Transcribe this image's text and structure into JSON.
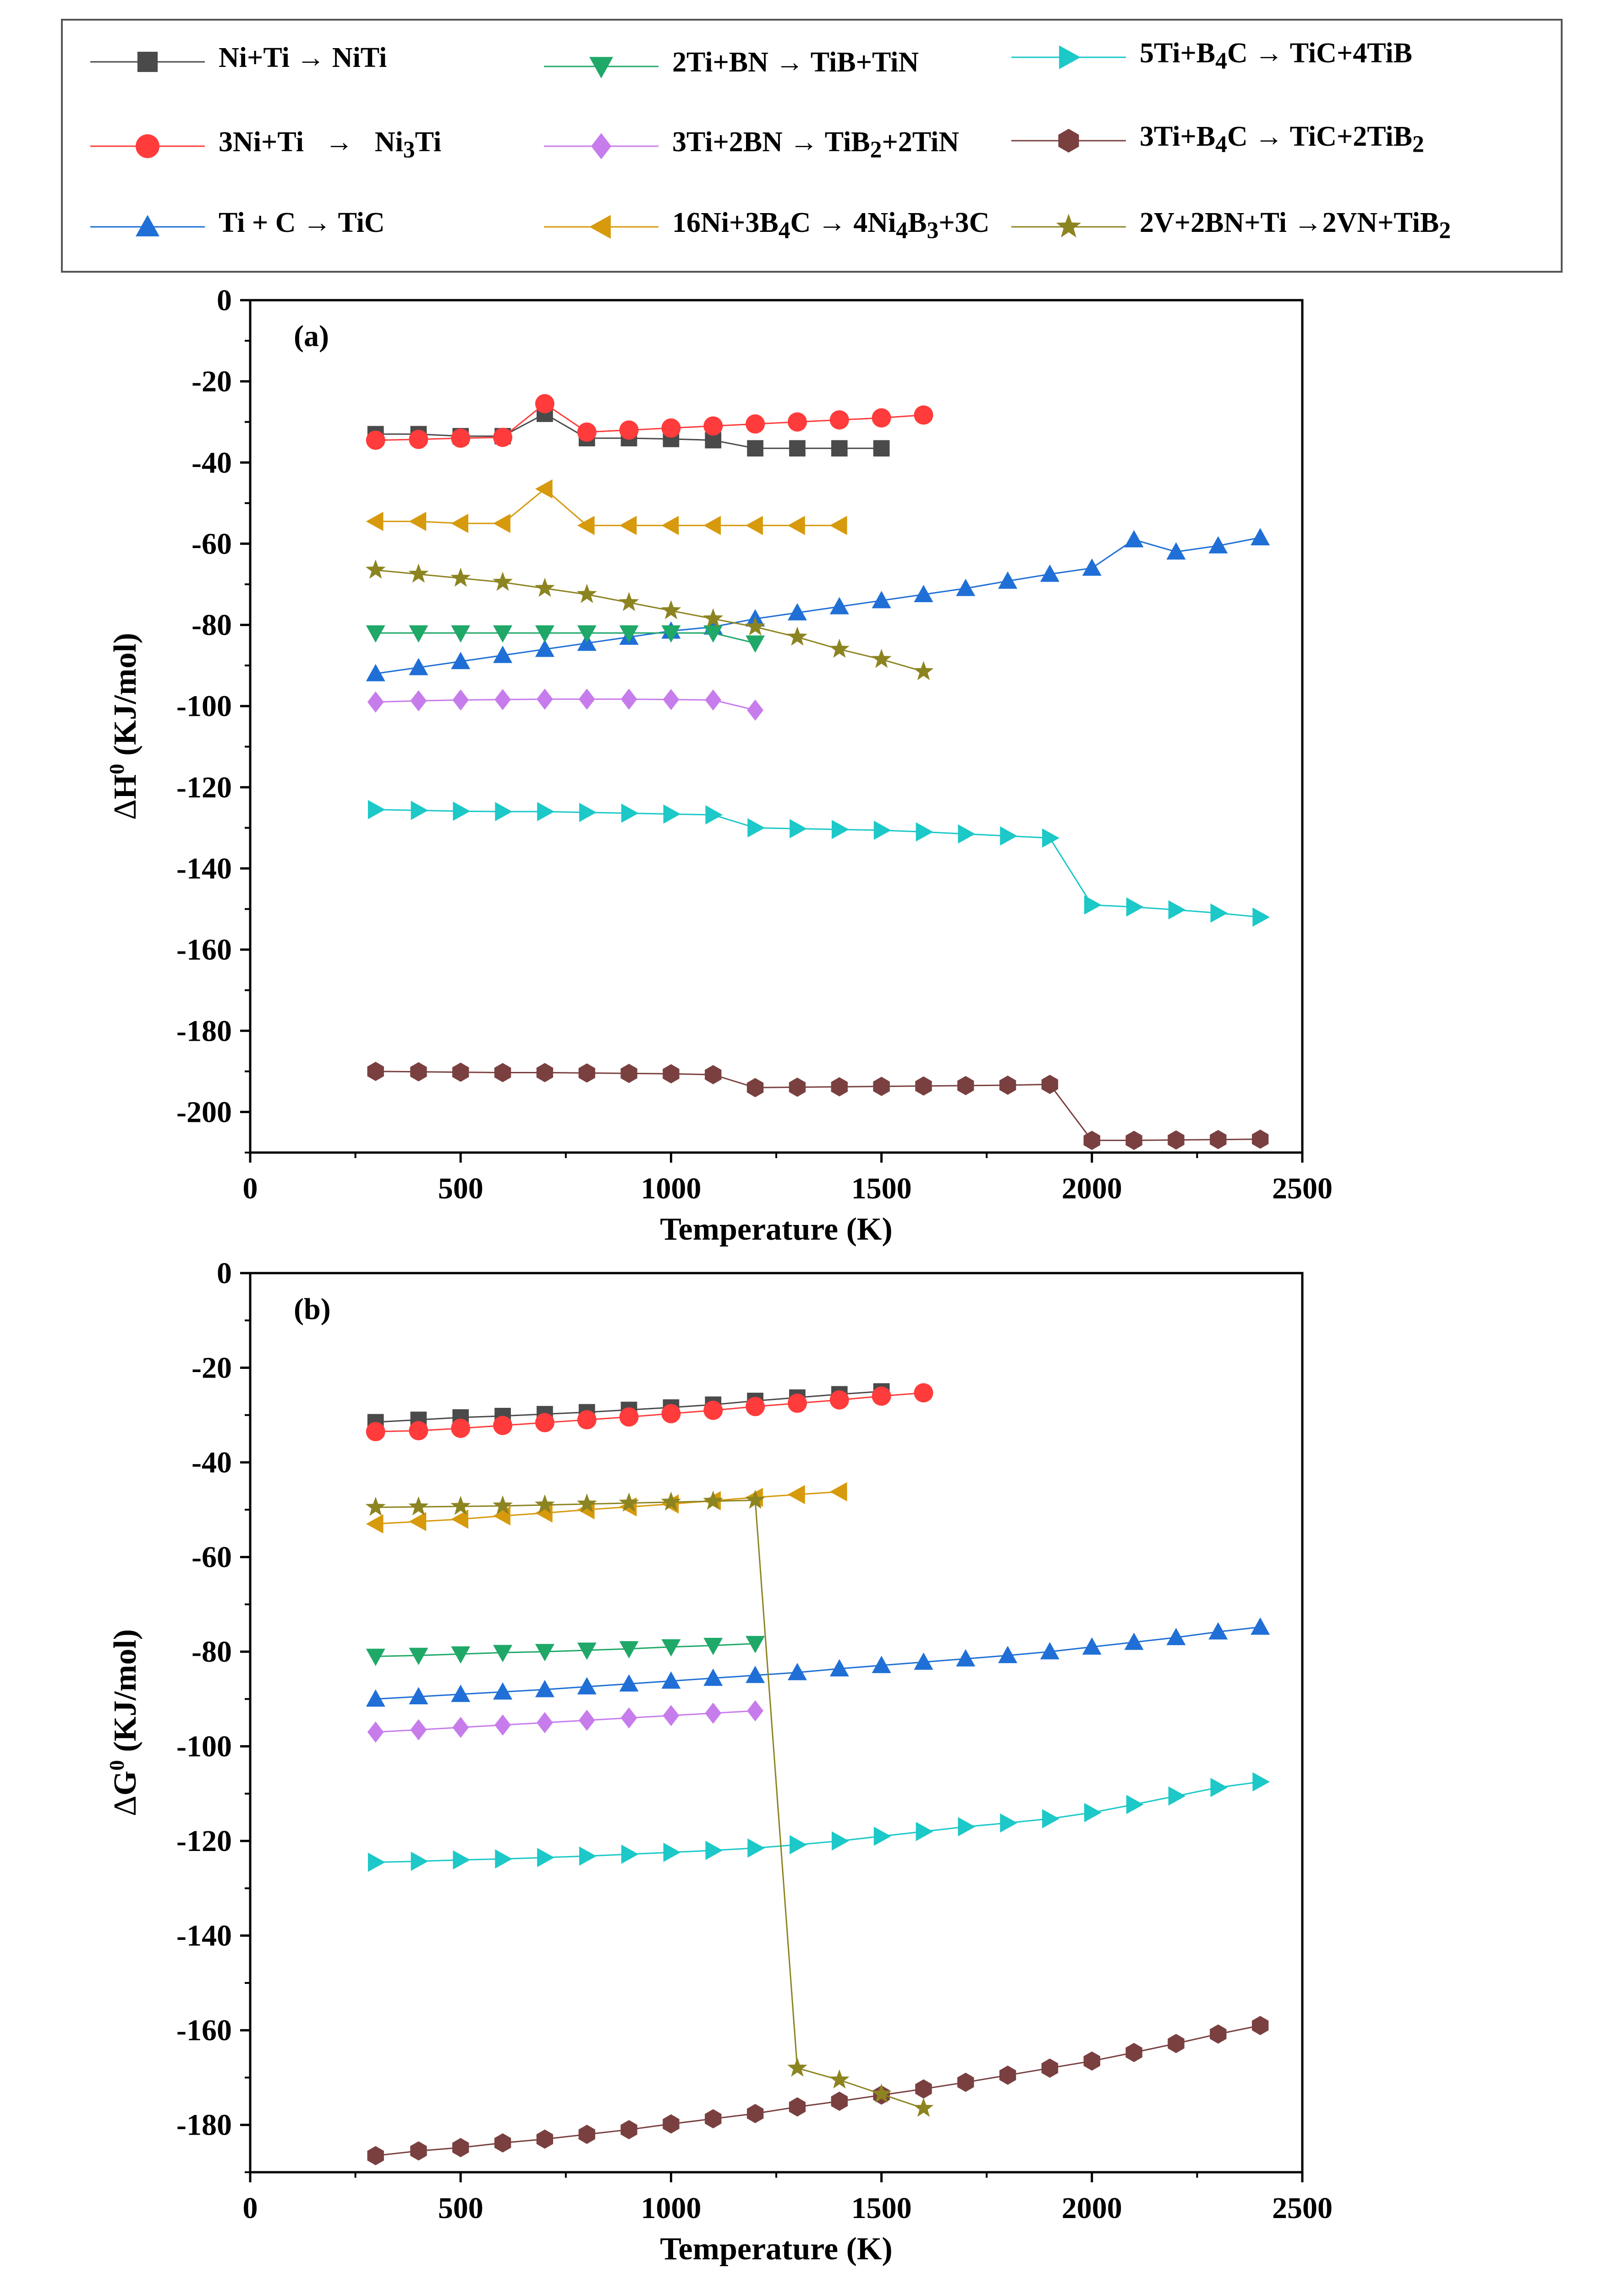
{
  "chart_data": [
    {
      "type": "line",
      "panel_label": "(a)",
      "title": "",
      "xlabel": "Temperature (K)",
      "ylabel": "ΔH⁰ (KJ/mol)",
      "xlim": [
        0,
        2500
      ],
      "ylim": [
        -210,
        0
      ],
      "x_ticks": [
        0,
        500,
        1000,
        1500,
        2000,
        2500
      ],
      "y_ticks": [
        0,
        -20,
        -40,
        -60,
        -80,
        -100,
        -120,
        -140,
        -160,
        -180,
        -200
      ],
      "series": [
        {
          "key": "niti",
          "name": "Ni+Ti → NiTi",
          "x": [
            298,
            400,
            500,
            600,
            700,
            800,
            900,
            1000,
            1100,
            1200,
            1300,
            1400,
            1500
          ],
          "y": [
            -33,
            -33,
            -33.5,
            -33.5,
            -28,
            -34,
            -34,
            -34.2,
            -34.5,
            -36.5,
            -36.5,
            -36.5,
            -36.5
          ]
        },
        {
          "key": "ni3ti",
          "name": "3Ni+Ti → Ni3Ti",
          "x": [
            298,
            400,
            500,
            600,
            700,
            800,
            900,
            1000,
            1100,
            1200,
            1300,
            1400,
            1500,
            1600
          ],
          "y": [
            -34.5,
            -34.3,
            -34,
            -33.8,
            -25.5,
            -32.5,
            -32,
            -31.5,
            -31,
            -30.5,
            -30,
            -29.5,
            -29,
            -28.3
          ]
        },
        {
          "key": "tic",
          "name": "Ti + C → TiC",
          "x": [
            298,
            400,
            500,
            600,
            700,
            800,
            900,
            1000,
            1100,
            1200,
            1300,
            1400,
            1500,
            1600,
            1700,
            1800,
            1900,
            2000,
            2100,
            2200,
            2300,
            2400
          ],
          "y": [
            -92,
            -90.5,
            -89,
            -87.5,
            -86,
            -84.5,
            -83,
            -81.5,
            -80.5,
            -78.5,
            -77,
            -75.5,
            -74,
            -72.5,
            -71,
            -69.2,
            -67.5,
            -66,
            -59,
            -62,
            -60.5,
            -58.5
          ]
        },
        {
          "key": "tib_tin",
          "name": "2Ti+BN → TiB+TiN",
          "x": [
            298,
            400,
            500,
            600,
            700,
            800,
            900,
            1000,
            1100,
            1200
          ],
          "y": [
            -82,
            -82,
            -82,
            -82,
            -82,
            -82,
            -82,
            -82,
            -82,
            -84.5
          ]
        },
        {
          "key": "tib2_tin",
          "name": "3Ti+2BN → TiB2+2TiN",
          "x": [
            298,
            400,
            500,
            600,
            700,
            800,
            900,
            1000,
            1100,
            1200
          ],
          "y": [
            -99,
            -98.7,
            -98.5,
            -98.4,
            -98.3,
            -98.3,
            -98.3,
            -98.4,
            -98.5,
            -101
          ]
        },
        {
          "key": "ni4b3",
          "name": "16Ni+3B4C → 4Ni4B3+3C",
          "x": [
            298,
            400,
            500,
            600,
            700,
            800,
            900,
            1000,
            1100,
            1200,
            1300,
            1400
          ],
          "y": [
            -54.5,
            -54.5,
            -55,
            -55,
            -46.5,
            -55.5,
            -55.5,
            -55.5,
            -55.5,
            -55.5,
            -55.5,
            -55.5
          ]
        },
        {
          "key": "tic_4tib",
          "name": "5Ti+B4C → TiC+4TiB",
          "x": [
            298,
            400,
            500,
            600,
            700,
            800,
            900,
            1000,
            1100,
            1200,
            1300,
            1400,
            1500,
            1600,
            1700,
            1800,
            1900,
            2000,
            2100,
            2200,
            2300,
            2400
          ],
          "y": [
            -125.5,
            -125.7,
            -125.9,
            -126,
            -126,
            -126.2,
            -126.4,
            -126.6,
            -126.8,
            -130,
            -130.2,
            -130.4,
            -130.6,
            -131,
            -131.5,
            -132,
            -132.5,
            -149,
            -149.5,
            -150.2,
            -151,
            -152
          ]
        },
        {
          "key": "tic_2tib2",
          "name": "3Ti+B4C → TiC+2TiB2",
          "x": [
            298,
            400,
            500,
            600,
            700,
            800,
            900,
            1000,
            1100,
            1200,
            1300,
            1400,
            1500,
            1600,
            1700,
            1800,
            1900,
            2000,
            2100,
            2200,
            2300,
            2400
          ],
          "y": [
            -190,
            -190.1,
            -190.2,
            -190.3,
            -190.3,
            -190.4,
            -190.5,
            -190.6,
            -190.8,
            -194,
            -193.9,
            -193.8,
            -193.7,
            -193.6,
            -193.5,
            -193.4,
            -193.2,
            -207,
            -207,
            -206.9,
            -206.8,
            -206.7
          ]
        },
        {
          "key": "vn_tib2",
          "name": "2V+2BN+Ti →2VN+TiB2",
          "x": [
            298,
            400,
            500,
            600,
            700,
            800,
            900,
            1000,
            1100,
            1200,
            1300,
            1400,
            1500,
            1600
          ],
          "y": [
            -66.5,
            -67.5,
            -68.5,
            -69.5,
            -71,
            -72.5,
            -74.5,
            -76.5,
            -78.5,
            -80.5,
            -83,
            -86,
            -88.5,
            -91.5
          ]
        }
      ]
    },
    {
      "type": "line",
      "panel_label": "(b)",
      "title": "",
      "xlabel": "Temperature (K)",
      "ylabel": "ΔG⁰ (KJ/mol)",
      "xlim": [
        0,
        2500
      ],
      "ylim": [
        -190,
        0
      ],
      "x_ticks": [
        0,
        500,
        1000,
        1500,
        2000,
        2500
      ],
      "y_ticks": [
        0,
        -20,
        -40,
        -60,
        -80,
        -100,
        -120,
        -140,
        -160,
        -180
      ],
      "series": [
        {
          "key": "niti",
          "name": "Ni+Ti → NiTi",
          "x": [
            298,
            400,
            500,
            600,
            700,
            800,
            900,
            1000,
            1100,
            1200,
            1300,
            1400,
            1500
          ],
          "y": [
            -31.5,
            -31,
            -30.5,
            -30.2,
            -29.8,
            -29.4,
            -28.9,
            -28.4,
            -27.8,
            -27,
            -26.3,
            -25.6,
            -25
          ]
        },
        {
          "key": "ni3ti",
          "name": "3Ni+Ti → Ni3Ti",
          "x": [
            298,
            400,
            500,
            600,
            700,
            800,
            900,
            1000,
            1100,
            1200,
            1300,
            1400,
            1500,
            1600
          ],
          "y": [
            -33.5,
            -33.3,
            -32.8,
            -32.2,
            -31.6,
            -31,
            -30.4,
            -29.7,
            -29,
            -28.2,
            -27.5,
            -26.8,
            -26,
            -25.3
          ]
        },
        {
          "key": "tic",
          "name": "Ti + C → TiC",
          "x": [
            298,
            400,
            500,
            600,
            700,
            800,
            900,
            1000,
            1100,
            1200,
            1300,
            1400,
            1500,
            1600,
            1700,
            1800,
            1900,
            2000,
            2100,
            2200,
            2300,
            2400
          ],
          "y": [
            -90,
            -89.5,
            -89,
            -88.5,
            -88,
            -87.4,
            -86.8,
            -86.2,
            -85.6,
            -85,
            -84.4,
            -83.6,
            -82.9,
            -82.2,
            -81.5,
            -80.8,
            -80,
            -79,
            -78,
            -77,
            -75.8,
            -74.8
          ]
        },
        {
          "key": "tib_tin",
          "name": "2Ti+BN → TiB+TiN",
          "x": [
            298,
            400,
            500,
            600,
            700,
            800,
            900,
            1000,
            1100,
            1200
          ],
          "y": [
            -81,
            -80.8,
            -80.5,
            -80.2,
            -80,
            -79.7,
            -79.4,
            -79,
            -78.7,
            -78.3
          ]
        },
        {
          "key": "tib2_tin",
          "name": "3Ti+2BN → TiB2+2TiN",
          "x": [
            298,
            400,
            500,
            600,
            700,
            800,
            900,
            1000,
            1100,
            1200
          ],
          "y": [
            -97,
            -96.5,
            -96,
            -95.5,
            -95,
            -94.5,
            -94,
            -93.5,
            -93,
            -92.5
          ]
        },
        {
          "key": "ni4b3",
          "name": "16Ni+3B4C → 4Ni4B3+3C",
          "x": [
            298,
            400,
            500,
            600,
            700,
            800,
            900,
            1000,
            1100,
            1200,
            1300,
            1400
          ],
          "y": [
            -53,
            -52.5,
            -52,
            -51.3,
            -50.7,
            -50,
            -49.4,
            -48.8,
            -48.1,
            -47.4,
            -46.8,
            -46.2
          ]
        },
        {
          "key": "tic_4tib",
          "name": "5Ti+B4C → TiC+4TiB",
          "x": [
            298,
            400,
            500,
            600,
            700,
            800,
            900,
            1000,
            1100,
            1200,
            1300,
            1400,
            1500,
            1600,
            1700,
            1800,
            1900,
            2000,
            2100,
            2200,
            2300,
            2400
          ],
          "y": [
            -124.5,
            -124.3,
            -124,
            -123.8,
            -123.5,
            -123.2,
            -122.8,
            -122.4,
            -122,
            -121.5,
            -120.8,
            -120,
            -119,
            -118,
            -117,
            -116.2,
            -115.3,
            -114,
            -112.3,
            -110.5,
            -108.7,
            -107.5
          ]
        },
        {
          "key": "tic_2tib2",
          "name": "3Ti+B4C → TiC+2TiB2",
          "x": [
            298,
            400,
            500,
            600,
            700,
            800,
            900,
            1000,
            1100,
            1200,
            1300,
            1400,
            1500,
            1600,
            1700,
            1800,
            1900,
            2000,
            2100,
            2200,
            2300,
            2400
          ],
          "y": [
            -186.5,
            -185.5,
            -184.8,
            -183.8,
            -183,
            -182,
            -181,
            -179.8,
            -178.7,
            -177.6,
            -176.2,
            -175,
            -173.7,
            -172.4,
            -171,
            -169.5,
            -168,
            -166.5,
            -164.7,
            -162.8,
            -160.8,
            -159
          ]
        },
        {
          "key": "vn_tib2",
          "name": "2V+2BN+Ti →2VN+TiB2",
          "x": [
            298,
            400,
            500,
            600,
            700,
            800,
            900,
            1000,
            1100,
            1200,
            1300,
            1400,
            1500,
            1600
          ],
          "y": [
            -49.5,
            -49.4,
            -49.3,
            -49.2,
            -49,
            -48.8,
            -48.6,
            -48.4,
            -48.2,
            -48,
            -168,
            -170.5,
            -173.5,
            -176.5
          ]
        }
      ]
    }
  ],
  "legend": {
    "niti": "Ni+Ti → NiTi",
    "ni3ti_a": "3Ni+Ti",
    "ni3ti_arrow": "→",
    "ni3ti_b1": "Ni",
    "ni3ti_sub": "3",
    "ni3ti_b2": "Ti",
    "tic": "Ti + C → TiC",
    "tib_tin": "2Ti+BN → TiB+TiN",
    "tib2_tin_a": "3Ti+2BN → TiB",
    "tib2_tin_sub": "2",
    "tib2_tin_b": "+2TiN",
    "ni4b3_a": "16Ni+3B",
    "ni4b3_s1": "4",
    "ni4b3_b": "C → 4Ni",
    "ni4b3_s2": "4",
    "ni4b3_c": "B",
    "ni4b3_s3": "3",
    "ni4b3_d": "+3C",
    "tic_4tib_a": "5Ti+B",
    "tic_4tib_sub": "4",
    "tic_4tib_b": "C → TiC+4TiB",
    "tic_2tib2_a": "3Ti+B",
    "tic_2tib2_s1": "4",
    "tic_2tib2_b": "C → TiC+2TiB",
    "tic_2tib2_s2": "2",
    "vn_tib2_a": "2V+2BN+Ti →2VN+TiB",
    "vn_tib2_sub": "2"
  },
  "colors": {
    "niti": "#4a4a4a",
    "ni3ti": "#ff3b3b",
    "tic": "#1f6fd6",
    "tib_tin": "#1fa868",
    "tib2_tin": "#c77cec",
    "ni4b3": "#d69a0c",
    "tic_4tib": "#1cc8c8",
    "tic_2tib2": "#7a4040",
    "vn_tib2": "#8c8420"
  },
  "markers": {
    "niti": "square",
    "ni3ti": "circle",
    "tic": "triangle-up",
    "tib_tin": "triangle-down",
    "tib2_tin": "diamond",
    "ni4b3": "triangle-left",
    "tic_4tib": "triangle-right",
    "tic_2tib2": "hexagon",
    "vn_tib2": "star"
  },
  "axis_labels": {
    "ylabel_a_delta": "Δ",
    "ylabel_a_sym": "H",
    "ylabel_a_sup": "0",
    "ylabel_a_unit": " (KJ/mol)",
    "ylabel_b_delta": "Δ",
    "ylabel_b_sym": "G",
    "ylabel_b_sup": "0",
    "ylabel_b_unit": " (KJ/mol)"
  }
}
